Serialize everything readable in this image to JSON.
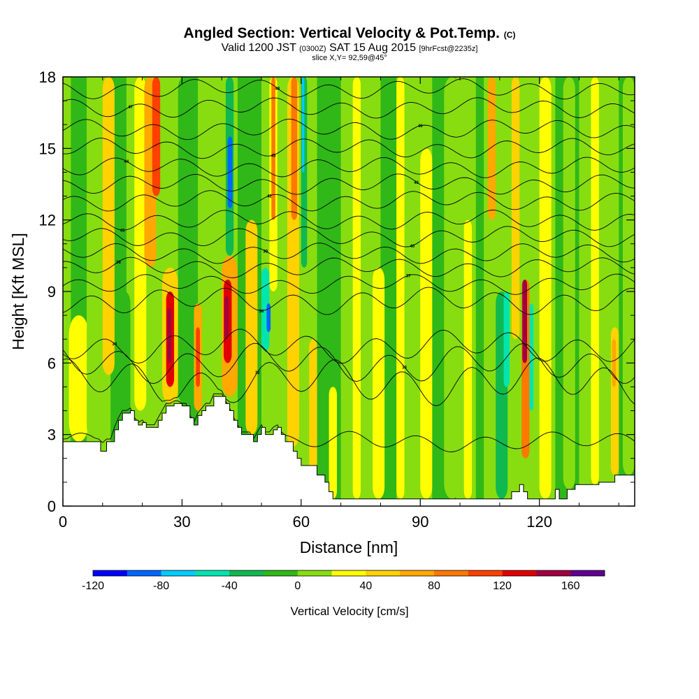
{
  "header": {
    "title": "Angled Section: Vertical Velocity & Pot.Temp.",
    "title_unit": "(C)",
    "subtitle_a": "Valid 1200 JST",
    "subtitle_b": "(0300Z)",
    "subtitle_c": "SAT 15 Aug 2015",
    "subtitle_d": "[9hrFcst@2235z]",
    "slice": "slice X,Y= 92,59@45°"
  },
  "chart_data": {
    "type": "heatmap",
    "title": "Angled Section: Vertical Velocity & Pot.Temp.",
    "xlabel": "Distance [nm]",
    "ylabel": "Height [Kft MSL]",
    "xlim": [
      0,
      144
    ],
    "ylim": [
      0,
      18
    ],
    "x_ticks": [
      "0",
      "30",
      "60",
      "90",
      "120"
    ],
    "x_tick_values": [
      0,
      30,
      60,
      90,
      120
    ],
    "y_ticks": [
      "0",
      "3",
      "6",
      "9",
      "12",
      "15",
      "18"
    ],
    "y_tick_values": [
      0,
      3,
      6,
      9,
      12,
      15,
      18
    ],
    "colorbar": {
      "label": "Vertical Velocity [cm/s]",
      "ticks": [
        "-120",
        "-80",
        "-40",
        "0",
        "40",
        "80",
        "120",
        "160"
      ],
      "tick_values": [
        -120,
        -80,
        -40,
        0,
        40,
        80,
        120,
        160
      ],
      "levels": [
        -120,
        -100,
        -80,
        -60,
        -40,
        -20,
        0,
        20,
        40,
        60,
        80,
        100,
        120,
        140,
        160,
        180
      ],
      "colors": [
        "#0000ff",
        "#0066ff",
        "#00ccff",
        "#00e5b0",
        "#10b850",
        "#30b818",
        "#88dd10",
        "#ffff00",
        "#ffd200",
        "#ffa800",
        "#ff7800",
        "#ff4000",
        "#e00000",
        "#a00040",
        "#600090"
      ]
    },
    "terrain_profile": [
      [
        0,
        2.7
      ],
      [
        9,
        2.7
      ],
      [
        9.5,
        2.3
      ],
      [
        11,
        2.7
      ],
      [
        13,
        3.2
      ],
      [
        14,
        3.6
      ],
      [
        15,
        3.9
      ],
      [
        17,
        4.0
      ],
      [
        18,
        3.6
      ],
      [
        19,
        3.4
      ],
      [
        20,
        3.5
      ],
      [
        21,
        3.3
      ],
      [
        23,
        3.3
      ],
      [
        24,
        3.6
      ],
      [
        25,
        3.9
      ],
      [
        26,
        4.2
      ],
      [
        28,
        4.3
      ],
      [
        30,
        4.2
      ],
      [
        32,
        3.7
      ],
      [
        33,
        3.4
      ],
      [
        34,
        3.8
      ],
      [
        35,
        4.0
      ],
      [
        36,
        4.2
      ],
      [
        38,
        4.6
      ],
      [
        40,
        4.6
      ],
      [
        41,
        4.3
      ],
      [
        42,
        4.0
      ],
      [
        43,
        3.6
      ],
      [
        44,
        3.3
      ],
      [
        45,
        3.0
      ],
      [
        47,
        3.0
      ],
      [
        48,
        2.7
      ],
      [
        49,
        3.0
      ],
      [
        50,
        3.3
      ],
      [
        51,
        3.0
      ],
      [
        53,
        3.2
      ],
      [
        54,
        3.3
      ],
      [
        55,
        3.0
      ],
      [
        56,
        2.7
      ],
      [
        57,
        2.7
      ],
      [
        58,
        2.3
      ],
      [
        59,
        2.0
      ],
      [
        60,
        1.7
      ],
      [
        62,
        1.7
      ],
      [
        64,
        1.3
      ],
      [
        66,
        1.0
      ],
      [
        67,
        0.6
      ],
      [
        68,
        0.3
      ],
      [
        72,
        0.3
      ],
      [
        79,
        0.3
      ],
      [
        86,
        0.3
      ],
      [
        94,
        0.3
      ],
      [
        103,
        0.3
      ],
      [
        108,
        0.3
      ],
      [
        112,
        0.3
      ],
      [
        113,
        0.6
      ],
      [
        115,
        0.9
      ],
      [
        116,
        0.6
      ],
      [
        117,
        0.3
      ],
      [
        123,
        0.3
      ],
      [
        124,
        0.7
      ],
      [
        125,
        0.3
      ],
      [
        127,
        0.7
      ],
      [
        129,
        0.9
      ],
      [
        131,
        0.9
      ],
      [
        133,
        0.9
      ],
      [
        135,
        1.0
      ],
      [
        137,
        1.0
      ],
      [
        139,
        1.3
      ],
      [
        144,
        1.3
      ]
    ],
    "velocity_columns": [
      {
        "x": 1.5,
        "w": 5,
        "bottom": 2.7,
        "top": 8,
        "value": 30
      },
      {
        "x": 6,
        "w": 4,
        "bottom": 2.7,
        "top": 18,
        "value": 0
      },
      {
        "x": 10,
        "w": 3,
        "bottom": 5.5,
        "top": 18,
        "value": 50
      },
      {
        "x": 14,
        "w": 3,
        "bottom": 3.0,
        "top": 9,
        "value": -10
      },
      {
        "x": 18,
        "w": 3,
        "bottom": 4.0,
        "top": 18,
        "value": 20
      },
      {
        "x": 20.5,
        "w": 3,
        "bottom": 10,
        "top": 18,
        "value": 60
      },
      {
        "x": 22.5,
        "w": 2,
        "bottom": 13,
        "top": 18,
        "value": 100
      },
      {
        "x": 25,
        "w": 4,
        "bottom": 4.3,
        "top": 10,
        "value": 50
      },
      {
        "x": 26,
        "w": 2,
        "bottom": 5.0,
        "top": 9,
        "value": 120
      },
      {
        "x": 26.3,
        "w": 1,
        "bottom": 6.0,
        "top": 8.3,
        "value": 140
      },
      {
        "x": 29,
        "w": 3,
        "bottom": 4.3,
        "top": 18,
        "value": -10
      },
      {
        "x": 33,
        "w": 2,
        "bottom": 4.0,
        "top": 8.5,
        "value": 60
      },
      {
        "x": 33.5,
        "w": 1,
        "bottom": 5.0,
        "top": 7.5,
        "value": 100
      },
      {
        "x": 36,
        "w": 2,
        "bottom": 4.6,
        "top": 18,
        "value": 0
      },
      {
        "x": 40,
        "w": 4,
        "bottom": 4.6,
        "top": 10.5,
        "value": 60
      },
      {
        "x": 40.5,
        "w": 2,
        "bottom": 6.0,
        "top": 9.5,
        "value": 120
      },
      {
        "x": 40.7,
        "w": 1,
        "bottom": 7.0,
        "top": 8.8,
        "value": 140
      },
      {
        "x": 41,
        "w": 2,
        "bottom": 10.5,
        "top": 18,
        "value": -40
      },
      {
        "x": 41.5,
        "w": 1.2,
        "bottom": 12.5,
        "top": 15.5,
        "value": -100
      },
      {
        "x": 46,
        "w": 3,
        "bottom": 3.0,
        "top": 12,
        "value": 40
      },
      {
        "x": 50,
        "w": 2,
        "bottom": 6.5,
        "top": 10,
        "value": -60
      },
      {
        "x": 51.3,
        "w": 1,
        "bottom": 7.3,
        "top": 8.5,
        "value": -100
      },
      {
        "x": 52,
        "w": 2,
        "bottom": 9,
        "top": 18,
        "value": 20
      },
      {
        "x": 52.5,
        "w": 1,
        "bottom": 12,
        "top": 18,
        "value": 80
      },
      {
        "x": 56.5,
        "w": 3,
        "bottom": 2.5,
        "top": 18,
        "value": 40
      },
      {
        "x": 57.5,
        "w": 1.5,
        "bottom": 12,
        "top": 18,
        "value": 80
      },
      {
        "x": 60,
        "w": 1.5,
        "bottom": 10,
        "top": 18,
        "value": -40
      },
      {
        "x": 60.2,
        "w": 0.6,
        "bottom": 14,
        "top": 18,
        "value": -80
      },
      {
        "x": 62,
        "w": 2,
        "bottom": 1.5,
        "top": 7,
        "value": 40
      },
      {
        "x": 67,
        "w": 2,
        "bottom": 0.3,
        "top": 5,
        "value": 30
      },
      {
        "x": 73,
        "w": 2,
        "bottom": 0.3,
        "top": 18,
        "value": 30
      },
      {
        "x": 78,
        "w": 3,
        "bottom": 0.3,
        "top": 10,
        "value": 30
      },
      {
        "x": 84,
        "w": 2,
        "bottom": 0.3,
        "top": 18,
        "value": 30
      },
      {
        "x": 90,
        "w": 3,
        "bottom": 0.3,
        "top": 15,
        "value": 30
      },
      {
        "x": 96,
        "w": 4,
        "bottom": 0.3,
        "top": 18,
        "value": 0
      },
      {
        "x": 101,
        "w": 2,
        "bottom": 0.3,
        "top": 12,
        "value": 30
      },
      {
        "x": 107,
        "w": 2,
        "bottom": 12,
        "top": 18,
        "value": 60
      },
      {
        "x": 109,
        "w": 3,
        "bottom": 0.3,
        "top": 9,
        "value": -40
      },
      {
        "x": 111,
        "w": 1.5,
        "bottom": 5,
        "top": 9,
        "value": -60
      },
      {
        "x": 113,
        "w": 2,
        "bottom": 7,
        "top": 18,
        "value": 40
      },
      {
        "x": 115.5,
        "w": 2,
        "bottom": 2.0,
        "top": 9.5,
        "value": 80
      },
      {
        "x": 115.7,
        "w": 1.2,
        "bottom": 6.0,
        "top": 9.5,
        "value": 140
      },
      {
        "x": 117.5,
        "w": 1,
        "bottom": 4.0,
        "top": 8.5,
        "value": -60
      },
      {
        "x": 120,
        "w": 3,
        "bottom": 0.3,
        "top": 18,
        "value": 20
      },
      {
        "x": 126,
        "w": 3,
        "bottom": 0.7,
        "top": 18,
        "value": 0
      },
      {
        "x": 133,
        "w": 2,
        "bottom": 0.9,
        "top": 18,
        "value": 20
      },
      {
        "x": 138,
        "w": 2,
        "bottom": 1.3,
        "top": 7.5,
        "value": 40
      },
      {
        "x": 138.3,
        "w": 1,
        "bottom": 5.0,
        "top": 7.0,
        "value": 70
      },
      {
        "x": 141,
        "w": 3,
        "bottom": 1.3,
        "top": 18,
        "value": 0
      }
    ],
    "theta_levels": [
      {
        "base": 2.7,
        "amp": 0.3,
        "label": "30"
      },
      {
        "base": 5.2,
        "amp": 0.7,
        "label": "32"
      },
      {
        "base": 6.0,
        "amp": 0.6,
        "label": "33"
      },
      {
        "base": 6.7,
        "amp": 0.5,
        "label": "34"
      },
      {
        "base": 8.6,
        "amp": 0.4,
        "label": "36"
      },
      {
        "base": 9.3,
        "amp": 0.3,
        "label": "37"
      },
      {
        "base": 10.0,
        "amp": 0.3,
        "label": "38"
      },
      {
        "base": 10.6,
        "amp": 0.3,
        "label": "39"
      },
      {
        "base": 11.3,
        "amp": 0.3,
        "label": "40"
      },
      {
        "base": 12.0,
        "amp": 0.3,
        "label": "41"
      },
      {
        "base": 12.8,
        "amp": 0.3,
        "label": "42"
      },
      {
        "base": 13.5,
        "amp": 0.3,
        "label": "43"
      },
      {
        "base": 14.2,
        "amp": 0.3,
        "label": "44"
      },
      {
        "base": 15.0,
        "amp": 0.3,
        "label": "45"
      },
      {
        "base": 15.8,
        "amp": 0.3,
        "label": "46"
      },
      {
        "base": 16.7,
        "amp": 0.3,
        "label": "47"
      },
      {
        "base": 17.5,
        "amp": 0.3,
        "label": "48"
      }
    ]
  }
}
